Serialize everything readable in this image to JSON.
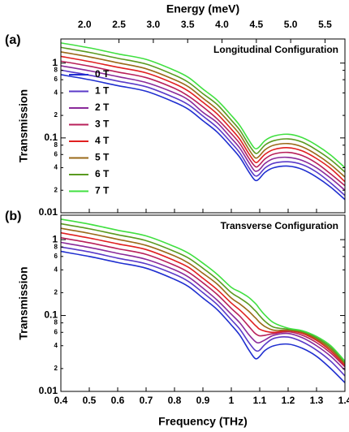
{
  "chart_data": [
    {
      "type": "line",
      "panel": "(a)",
      "annotation": "Longitudinal Configuration",
      "x2label": "Energy (meV)",
      "ylabel": "Transmission",
      "ylog": true,
      "legend": "center left",
      "xlim": [
        0.4,
        1.4
      ],
      "xticks": [
        0.4,
        0.5,
        0.6,
        0.7,
        0.8,
        0.9,
        1.0,
        1.1,
        1.2,
        1.3,
        1.4
      ],
      "x2lim": [
        1.654,
        5.79
      ],
      "x2ticks": [
        {
          "value": 2,
          "label": "2.0"
        },
        2.5,
        {
          "value": 3,
          "label": "3.0"
        },
        3.5,
        {
          "value": 4,
          "label": "4.0"
        },
        4.5,
        {
          "value": 5,
          "label": "5.0"
        },
        5.5
      ],
      "ylim": [
        0.01,
        2.1
      ],
      "yticks": [
        0.01,
        {
          "value": 0.02,
          "label": "2"
        },
        {
          "value": 0.04,
          "label": "4"
        },
        {
          "value": 0.06,
          "label": "6"
        },
        {
          "value": 0.08,
          "label": "8"
        },
        0.1,
        {
          "value": 0.2,
          "label": "2"
        },
        {
          "value": 0.4,
          "label": "4"
        },
        {
          "value": 0.6,
          "label": "6"
        },
        {
          "value": 0.8,
          "label": "8"
        },
        1
      ],
      "x": [
        0.4,
        0.5,
        0.6,
        0.7,
        0.8,
        0.85,
        0.9,
        0.95,
        1.0,
        1.03,
        1.06,
        1.08,
        1.09,
        1.1,
        1.12,
        1.15,
        1.2,
        1.25,
        1.3,
        1.35,
        1.4
      ],
      "series": [
        {
          "name": "0 T",
          "color": "#1f2fd0",
          "values": [
            0.7,
            0.6,
            0.5,
            0.42,
            0.3,
            0.24,
            0.17,
            0.12,
            0.075,
            0.055,
            0.036,
            0.028,
            0.027,
            0.029,
            0.035,
            0.04,
            0.042,
            0.038,
            0.03,
            0.022,
            0.015
          ]
        },
        {
          "name": "1 T",
          "color": "#5a3ac8",
          "values": [
            0.805,
            0.69,
            0.575,
            0.483,
            0.345,
            0.276,
            0.196,
            0.138,
            0.086,
            0.063,
            0.041,
            0.032,
            0.031,
            0.033,
            0.04,
            0.046,
            0.048,
            0.044,
            0.035,
            0.025,
            0.017
          ]
        },
        {
          "name": "2 T",
          "color": "#8a2a9a",
          "values": [
            0.92,
            0.79,
            0.66,
            0.55,
            0.4,
            0.32,
            0.22,
            0.16,
            0.099,
            0.073,
            0.048,
            0.037,
            0.036,
            0.038,
            0.046,
            0.053,
            0.055,
            0.05,
            0.04,
            0.029,
            0.02
          ]
        },
        {
          "name": "3 T",
          "color": "#b8205a",
          "values": [
            1.06,
            0.91,
            0.76,
            0.64,
            0.46,
            0.36,
            0.26,
            0.18,
            0.114,
            0.084,
            0.055,
            0.043,
            0.041,
            0.044,
            0.053,
            0.061,
            0.064,
            0.058,
            0.046,
            0.033,
            0.023
          ]
        },
        {
          "name": "4 T",
          "color": "#e02020",
          "values": [
            1.23,
            1.05,
            0.88,
            0.74,
            0.53,
            0.42,
            0.3,
            0.21,
            0.131,
            0.096,
            0.063,
            0.049,
            0.047,
            0.051,
            0.061,
            0.07,
            0.074,
            0.067,
            0.053,
            0.039,
            0.026
          ]
        },
        {
          "name": "5 T",
          "color": "#9a6a1a",
          "values": [
            1.41,
            1.21,
            1.01,
            0.84,
            0.6,
            0.48,
            0.34,
            0.24,
            0.151,
            0.111,
            0.072,
            0.056,
            0.054,
            0.058,
            0.07,
            0.08,
            0.084,
            0.076,
            0.06,
            0.044,
            0.03
          ]
        },
        {
          "name": "6 T",
          "color": "#5a9a20",
          "values": [
            1.62,
            1.39,
            1.16,
            0.97,
            0.69,
            0.55,
            0.39,
            0.28,
            0.173,
            0.127,
            0.083,
            0.065,
            0.062,
            0.067,
            0.081,
            0.092,
            0.097,
            0.088,
            0.069,
            0.051,
            0.035
          ]
        },
        {
          "name": "7 T",
          "color": "#40e040",
          "values": [
            1.86,
            1.6,
            1.33,
            1.12,
            0.8,
            0.64,
            0.45,
            0.32,
            0.2,
            0.146,
            0.096,
            0.074,
            0.072,
            0.077,
            0.093,
            0.106,
            0.112,
            0.101,
            0.08,
            0.059,
            0.04
          ]
        }
      ]
    },
    {
      "type": "line",
      "panel": "(b)",
      "annotation": "Transverse Configuration",
      "xlabel": "Frequency (THz)",
      "ylabel": "Transmission",
      "ylog": true,
      "xlim": [
        0.4,
        1.4
      ],
      "xticks": [
        0.4,
        0.5,
        0.6,
        0.7,
        0.8,
        0.9,
        1.0,
        1.1,
        1.2,
        1.3,
        1.4
      ],
      "ylim": [
        0.01,
        2.1
      ],
      "yticks": [
        0.01,
        {
          "value": 0.02,
          "label": "2"
        },
        {
          "value": 0.04,
          "label": "4"
        },
        {
          "value": 0.06,
          "label": "6"
        },
        {
          "value": 0.08,
          "label": "8"
        },
        0.1,
        {
          "value": 0.2,
          "label": "2"
        },
        {
          "value": 0.4,
          "label": "4"
        },
        {
          "value": 0.6,
          "label": "6"
        },
        {
          "value": 0.8,
          "label": "8"
        },
        1
      ],
      "x": [
        0.4,
        0.5,
        0.6,
        0.7,
        0.8,
        0.85,
        0.9,
        0.95,
        1.0,
        1.03,
        1.06,
        1.08,
        1.09,
        1.1,
        1.12,
        1.15,
        1.2,
        1.25,
        1.3,
        1.35,
        1.4
      ],
      "series": [
        {
          "name": "0 T",
          "color": "#1f2fd0",
          "values": [
            0.7,
            0.6,
            0.5,
            0.42,
            0.3,
            0.24,
            0.17,
            0.12,
            0.075,
            0.055,
            0.036,
            0.028,
            0.027,
            0.029,
            0.035,
            0.04,
            0.042,
            0.037,
            0.029,
            0.02,
            0.013
          ]
        },
        {
          "name": "1 T",
          "color": "#5a3ac8",
          "values": [
            0.8,
            0.69,
            0.57,
            0.48,
            0.35,
            0.28,
            0.2,
            0.14,
            0.088,
            0.066,
            0.045,
            0.036,
            0.034,
            0.035,
            0.042,
            0.05,
            0.052,
            0.045,
            0.035,
            0.025,
            0.016
          ]
        },
        {
          "name": "2 T",
          "color": "#8a2a9a",
          "values": [
            0.92,
            0.79,
            0.66,
            0.55,
            0.4,
            0.32,
            0.23,
            0.16,
            0.104,
            0.08,
            0.057,
            0.047,
            0.044,
            0.044,
            0.048,
            0.055,
            0.058,
            0.051,
            0.04,
            0.029,
            0.019
          ]
        },
        {
          "name": "3 T",
          "color": "#b8205a",
          "values": [
            1.06,
            0.91,
            0.76,
            0.64,
            0.46,
            0.37,
            0.27,
            0.19,
            0.124,
            0.098,
            0.073,
            0.06,
            0.056,
            0.054,
            0.055,
            0.058,
            0.061,
            0.055,
            0.044,
            0.032,
            0.021
          ]
        },
        {
          "name": "4 T",
          "color": "#e02020",
          "values": [
            1.23,
            1.05,
            0.88,
            0.74,
            0.53,
            0.43,
            0.31,
            0.22,
            0.146,
            0.118,
            0.092,
            0.077,
            0.071,
            0.066,
            0.062,
            0.06,
            0.063,
            0.058,
            0.047,
            0.034,
            0.022
          ]
        },
        {
          "name": "5 T",
          "color": "#9a6a1a",
          "values": [
            1.41,
            1.21,
            1.01,
            0.84,
            0.61,
            0.49,
            0.36,
            0.26,
            0.17,
            0.142,
            0.115,
            0.097,
            0.089,
            0.081,
            0.071,
            0.064,
            0.064,
            0.06,
            0.049,
            0.036,
            0.023
          ]
        },
        {
          "name": "6 T",
          "color": "#5a9a20",
          "values": [
            1.62,
            1.39,
            1.16,
            0.97,
            0.7,
            0.57,
            0.42,
            0.3,
            0.2,
            0.17,
            0.142,
            0.12,
            0.11,
            0.099,
            0.083,
            0.07,
            0.066,
            0.062,
            0.051,
            0.038,
            0.024
          ]
        },
        {
          "name": "7 T",
          "color": "#40e040",
          "values": [
            1.86,
            1.6,
            1.33,
            1.12,
            0.81,
            0.66,
            0.49,
            0.35,
            0.235,
            0.205,
            0.175,
            0.15,
            0.137,
            0.122,
            0.1,
            0.08,
            0.068,
            0.063,
            0.053,
            0.04,
            0.025
          ]
        }
      ]
    }
  ]
}
